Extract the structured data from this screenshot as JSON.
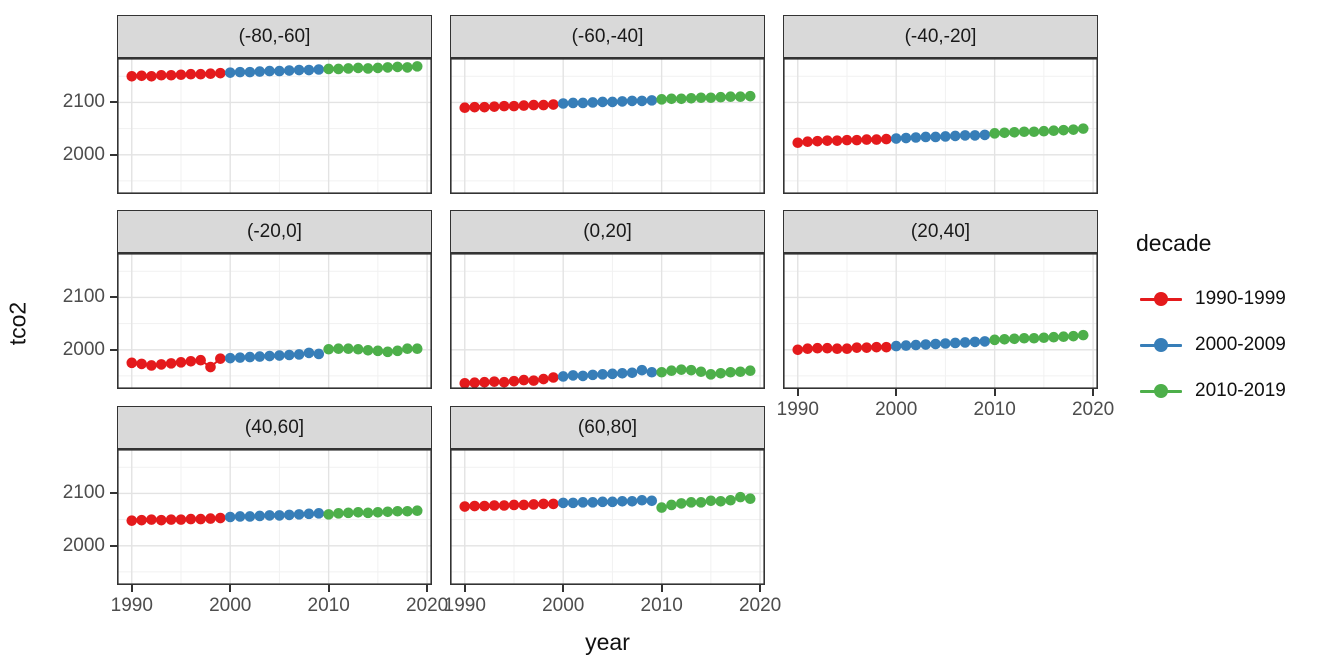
{
  "chart_data": {
    "type": "line",
    "title": "",
    "xlabel": "year",
    "ylabel": "tco2",
    "x": [
      1990,
      1991,
      1992,
      1993,
      1994,
      1995,
      1996,
      1997,
      1998,
      1999,
      2000,
      2001,
      2002,
      2003,
      2004,
      2005,
      2006,
      2007,
      2008,
      2009,
      2010,
      2011,
      2012,
      2013,
      2014,
      2015,
      2016,
      2017,
      2018,
      2019
    ],
    "xlim": [
      1988.5,
      2020.5
    ],
    "ylim": [
      1925,
      2185
    ],
    "x_tick_values": [
      1990,
      2000,
      2010,
      2020
    ],
    "x_tick_labels": [
      "1990",
      "2000",
      "2010",
      "2020"
    ],
    "y_tick_values": [
      2100,
      2000
    ],
    "y_tick_labels": [
      "2100",
      "2000"
    ],
    "grid": {
      "on": true,
      "x_major": [
        1990,
        2000,
        2010,
        2020
      ],
      "x_minor": [
        1995,
        2005,
        2015
      ],
      "y_major": [
        2100,
        2000
      ],
      "y_minor": [
        2150,
        2050,
        1950
      ]
    },
    "legend": {
      "title": "decade",
      "position": "right",
      "items": [
        {
          "label": "1990-1999",
          "color": "#E41A1C"
        },
        {
          "label": "2000-2009",
          "color": "#377EB8"
        },
        {
          "label": "2010-2019",
          "color": "#4DAF4A"
        }
      ]
    },
    "facets": [
      {
        "label": "(-80,-60]",
        "series": [
          {
            "name": "1990-1999",
            "color": "#E41A1C",
            "values": [
              2150,
              2151,
              2150,
              2152,
              2152,
              2153,
              2154,
              2154,
              2155,
              2156
            ]
          },
          {
            "name": "2000-2009",
            "color": "#377EB8",
            "values": [
              2157,
              2158,
              2158,
              2159,
              2160,
              2160,
              2161,
              2162,
              2162,
              2163
            ]
          },
          {
            "name": "2010-2019",
            "color": "#4DAF4A",
            "values": [
              2164,
              2164,
              2165,
              2166,
              2165,
              2166,
              2167,
              2168,
              2167,
              2169
            ]
          }
        ]
      },
      {
        "label": "(-60,-40]",
        "series": [
          {
            "name": "1990-1999",
            "color": "#E41A1C",
            "values": [
              2090,
              2091,
              2091,
              2092,
              2093,
              2093,
              2094,
              2095,
              2095,
              2096
            ]
          },
          {
            "name": "2000-2009",
            "color": "#377EB8",
            "values": [
              2098,
              2099,
              2099,
              2100,
              2101,
              2101,
              2102,
              2103,
              2103,
              2104
            ]
          },
          {
            "name": "2010-2019",
            "color": "#4DAF4A",
            "values": [
              2106,
              2107,
              2107,
              2108,
              2109,
              2109,
              2110,
              2111,
              2111,
              2112
            ]
          }
        ]
      },
      {
        "label": "(-40,-20]",
        "series": [
          {
            "name": "1990-1999",
            "color": "#E41A1C",
            "values": [
              2023,
              2025,
              2026,
              2027,
              2027,
              2028,
              2028,
              2029,
              2029,
              2030
            ]
          },
          {
            "name": "2000-2009",
            "color": "#377EB8",
            "values": [
              2031,
              2032,
              2033,
              2034,
              2034,
              2035,
              2036,
              2037,
              2037,
              2038
            ]
          },
          {
            "name": "2010-2019",
            "color": "#4DAF4A",
            "values": [
              2041,
              2042,
              2043,
              2044,
              2044,
              2045,
              2046,
              2047,
              2048,
              2050
            ]
          }
        ]
      },
      {
        "label": "(-20,0]",
        "series": [
          {
            "name": "1990-1999",
            "color": "#E41A1C",
            "values": [
              1975,
              1973,
              1970,
              1972,
              1974,
              1976,
              1978,
              1980,
              1967,
              1983
            ]
          },
          {
            "name": "2000-2009",
            "color": "#377EB8",
            "values": [
              1984,
              1985,
              1986,
              1987,
              1988,
              1989,
              1990,
              1991,
              1994,
              1992
            ]
          },
          {
            "name": "2010-2019",
            "color": "#4DAF4A",
            "values": [
              2001,
              2002,
              2002,
              2001,
              1999,
              1998,
              1996,
              1998,
              2002,
              2002
            ]
          }
        ]
      },
      {
        "label": "(0,20]",
        "series": [
          {
            "name": "1990-1999",
            "color": "#E41A1C",
            "values": [
              1936,
              1937,
              1938,
              1939,
              1938,
              1940,
              1942,
              1941,
              1944,
              1947
            ]
          },
          {
            "name": "2000-2009",
            "color": "#377EB8",
            "values": [
              1949,
              1951,
              1950,
              1952,
              1953,
              1954,
              1955,
              1956,
              1961,
              1957
            ]
          },
          {
            "name": "2010-2019",
            "color": "#4DAF4A",
            "values": [
              1957,
              1960,
              1962,
              1961,
              1958,
              1953,
              1955,
              1957,
              1958,
              1960
            ]
          }
        ]
      },
      {
        "label": "(20,40]",
        "series": [
          {
            "name": "1990-1999",
            "color": "#E41A1C",
            "values": [
              2000,
              2002,
              2003,
              2003,
              2002,
              2002,
              2004,
              2004,
              2005,
              2005
            ]
          },
          {
            "name": "2000-2009",
            "color": "#377EB8",
            "values": [
              2007,
              2008,
              2009,
              2010,
              2011,
              2012,
              2013,
              2014,
              2015,
              2016
            ]
          },
          {
            "name": "2010-2019",
            "color": "#4DAF4A",
            "values": [
              2019,
              2020,
              2021,
              2022,
              2022,
              2023,
              2024,
              2025,
              2026,
              2028
            ]
          }
        ]
      },
      {
        "label": "(40,60]",
        "series": [
          {
            "name": "1990-1999",
            "color": "#E41A1C",
            "values": [
              2048,
              2049,
              2050,
              2049,
              2050,
              2050,
              2051,
              2051,
              2052,
              2053
            ]
          },
          {
            "name": "2000-2009",
            "color": "#377EB8",
            "values": [
              2055,
              2056,
              2056,
              2057,
              2058,
              2058,
              2059,
              2060,
              2061,
              2062
            ]
          },
          {
            "name": "2010-2019",
            "color": "#4DAF4A",
            "values": [
              2060,
              2062,
              2063,
              2064,
              2063,
              2064,
              2065,
              2066,
              2066,
              2067
            ]
          }
        ]
      },
      {
        "label": "(60,80]",
        "series": [
          {
            "name": "1990-1999",
            "color": "#E41A1C",
            "values": [
              2075,
              2076,
              2076,
              2077,
              2077,
              2078,
              2078,
              2079,
              2080,
              2080
            ]
          },
          {
            "name": "2000-2009",
            "color": "#377EB8",
            "values": [
              2082,
              2082,
              2083,
              2083,
              2084,
              2084,
              2085,
              2085,
              2087,
              2086
            ]
          },
          {
            "name": "2010-2019",
            "color": "#4DAF4A",
            "values": [
              2073,
              2078,
              2081,
              2083,
              2083,
              2086,
              2085,
              2087,
              2093,
              2090
            ]
          }
        ]
      }
    ]
  },
  "colors": {
    "series_red": "#E41A1C",
    "series_blue": "#377EB8",
    "series_green": "#4DAF4A",
    "strip_fill": "#d9d9d9",
    "panel_border": "#333333",
    "grid_major": "#e3e3e3",
    "grid_minor": "#f1f1f1",
    "axis_text": "#4d4d4d",
    "title_text": "#111111"
  }
}
